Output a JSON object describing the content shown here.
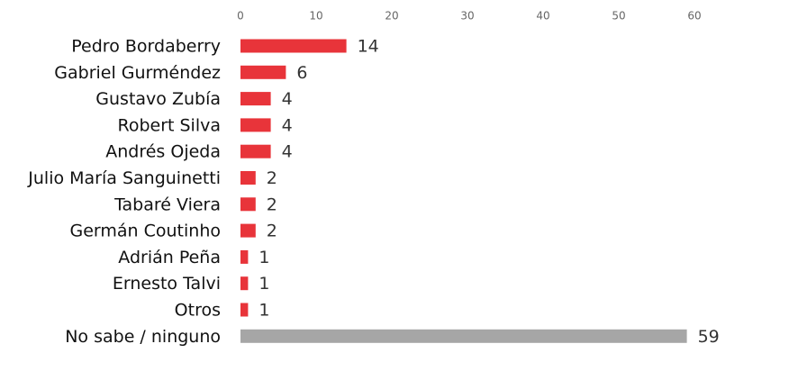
{
  "chart_data": {
    "type": "bar",
    "orientation": "horizontal",
    "categories": [
      "Pedro Bordaberry",
      "Gabriel Gurméndez",
      "Gustavo Zubía",
      "Robert Silva",
      "Andrés Ojeda",
      "Julio María Sanguinetti",
      "Tabaré Viera",
      "Germán Coutinho",
      "Adrián Peña",
      "Ernesto Talvi",
      "Otros",
      "No sabe / ninguno"
    ],
    "values": [
      14,
      6,
      4,
      4,
      4,
      2,
      2,
      2,
      1,
      1,
      1,
      59
    ],
    "colors": [
      "#e8343a",
      "#e8343a",
      "#e8343a",
      "#e8343a",
      "#e8343a",
      "#e8343a",
      "#e8343a",
      "#e8343a",
      "#e8343a",
      "#e8343a",
      "#e8343a",
      "#a6a6a6"
    ],
    "xlim": [
      0,
      60
    ],
    "xticks": [
      0,
      10,
      20,
      30,
      40,
      50,
      60
    ],
    "grid": false
  }
}
